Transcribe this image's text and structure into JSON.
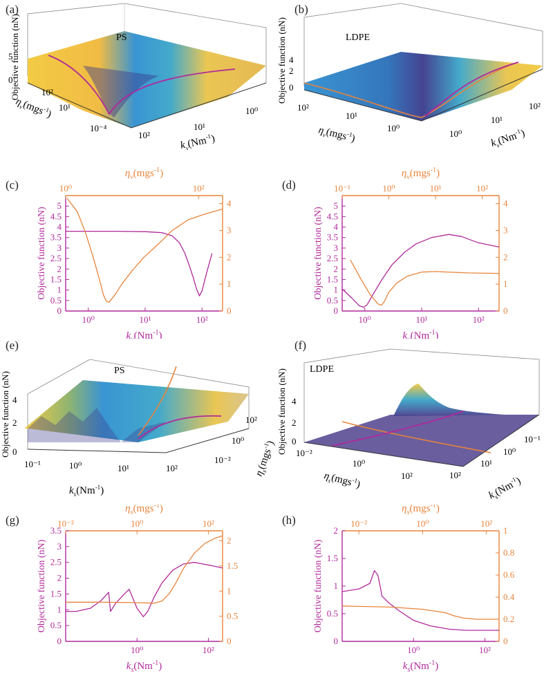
{
  "colors": {
    "magenta": "#b0299b",
    "orange": "#e8833a",
    "axis": "#333333",
    "surf_yellow": "#f2c83a",
    "surf_blue": "#2f8fd0",
    "surf_dark": "#3b3a8c",
    "surf_green": "#8ab06a"
  },
  "panels": {
    "a": {
      "label": "(a)",
      "material": "PS",
      "zlabel": "Objective function (nN)",
      "zticks": [
        "0",
        "5"
      ],
      "ylabel": "η",
      "ylabel_sub": "v",
      "ylabel_unit": "(mgs",
      "ylabel_exp": "-1",
      "ylabel_end": ")",
      "yticks": [
        "10²",
        "10¹",
        "10⁻⁴"
      ],
      "xlabel": "k",
      "xlabel_sub": "v",
      "xlabel_unit": "(Nm",
      "xlabel_exp": "-1",
      "xlabel_end": ")",
      "xticks": [
        "10⁰",
        "10¹",
        "10²"
      ]
    },
    "b": {
      "label": "(b)",
      "material": "LDPE",
      "zlabel": "Objective function (nN)",
      "zticks": [
        "0",
        "2",
        "4"
      ],
      "ylabel": "η",
      "ylabel_sub": "v",
      "ylabel_unit": "(mgs",
      "ylabel_exp": "-1",
      "ylabel_end": ")",
      "yticks": [
        "10²",
        "10¹",
        "10⁰"
      ],
      "xlabel": "k",
      "xlabel_sub": "v",
      "xlabel_unit": "(Nm",
      "xlabel_exp": "-1",
      "xlabel_end": ")",
      "xticks": [
        "10⁰",
        "10¹",
        "10²"
      ]
    },
    "e": {
      "label": "(e)",
      "material": "PS",
      "zlabel": "Objective function (nN)",
      "zticks": [
        "0",
        "2",
        "4"
      ],
      "ylabel": "η",
      "ylabel_sub": "s",
      "ylabel_unit": "(mgs",
      "ylabel_exp": "-1",
      "ylabel_end": ")",
      "yticks": [
        "10²",
        "10⁰",
        "10⁻²"
      ],
      "xlabel": "k",
      "xlabel_sub": "s",
      "xlabel_unit": "(Nm",
      "xlabel_exp": "-1",
      "xlabel_end": ")",
      "xticks": [
        "10⁻¹",
        "10⁰",
        "10¹",
        "10²"
      ]
    },
    "f": {
      "label": "(f)",
      "material": "LDPE",
      "zlabel": "Objective function (nN)",
      "zticks": [
        "0",
        "2",
        "4"
      ],
      "ylabel": "η",
      "ylabel_sub": "s",
      "ylabel_unit": "(mgs",
      "ylabel_exp": "-1",
      "ylabel_end": ")",
      "yticks": [
        "10⁻²",
        "10⁰",
        "10²"
      ],
      "xlabel": "k",
      "xlabel_sub": "s",
      "xlabel_unit": "(Nm",
      "xlabel_exp": "-1",
      "xlabel_end": ")",
      "xticks": [
        "10²",
        "10¹",
        "10⁰",
        "10⁻¹"
      ]
    }
  },
  "chart_data": [
    {
      "id": "c",
      "type": "line",
      "label": "(c)",
      "xlabel": "k",
      "xlabel_sub": "v",
      "xlabel_unit": "(Nm",
      "xlabel_exp": "-1",
      "xlabel_end": ")",
      "toplabel": "η",
      "toplabel_sub": "v",
      "toplabel_unit": "(mgs",
      "toplabel_exp": "-1",
      "toplabel_end": ")",
      "ylabel": "Objective function (nN)",
      "xlim": [
        0.4,
        230
      ],
      "toplim": [
        1,
        230
      ],
      "ylim": [
        0,
        5.5
      ],
      "y2lim": [
        0,
        4.3
      ],
      "xticks": [
        {
          "v": 1,
          "t": "10⁰"
        },
        {
          "v": 10,
          "t": "10¹"
        },
        {
          "v": 100,
          "t": "10²"
        }
      ],
      "topticks": [
        {
          "v": 1,
          "t": "10⁰"
        },
        {
          "v": 100,
          "t": "10²"
        }
      ],
      "yticks": [
        "0",
        "0.5",
        "1",
        "1.5",
        "2",
        "2.5",
        "3",
        "3.5",
        "4",
        "4.5",
        "5"
      ],
      "y2ticks": [
        "0",
        "1",
        "2",
        "3",
        "4"
      ],
      "series": [
        {
          "name": "Objective vs k_v",
          "axis": "left",
          "color": "magenta",
          "x": [
            0.4,
            1,
            3,
            10,
            20,
            30,
            40,
            50,
            60,
            70,
            80,
            90,
            100,
            120,
            150
          ],
          "y": [
            3.8,
            3.8,
            3.8,
            3.78,
            3.73,
            3.58,
            3.25,
            2.75,
            2.15,
            1.6,
            1.05,
            0.72,
            0.95,
            1.8,
            2.75
          ]
        },
        {
          "name": "Objective vs η_v",
          "axis": "right",
          "color": "orange",
          "x": [
            1.05,
            1.5,
            2,
            2.6,
            3.2,
            3.7,
            4.1,
            4.5,
            5.5,
            7,
            10,
            15,
            25,
            40,
            70,
            120,
            230
          ],
          "y": [
            4.2,
            3.7,
            2.9,
            2.0,
            1.2,
            0.6,
            0.36,
            0.33,
            0.6,
            1.0,
            1.5,
            2.0,
            2.5,
            3.0,
            3.4,
            3.6,
            3.8
          ]
        }
      ]
    },
    {
      "id": "d",
      "type": "line",
      "label": "(d)",
      "xlabel": "k",
      "xlabel_sub": "v",
      "xlabel_unit": "(Nm",
      "xlabel_exp": "-1",
      "xlabel_end": ")",
      "toplabel": "η",
      "toplabel_sub": "v",
      "toplabel_unit": "(mgs",
      "toplabel_exp": "-1",
      "toplabel_end": ")",
      "ylabel": "Objective function (nN)",
      "xlim": [
        0.4,
        230
      ],
      "toplim": [
        0.1,
        230
      ],
      "ylim": [
        0,
        5.5
      ],
      "y2lim": [
        0,
        4.3
      ],
      "xticks": [
        {
          "v": 1,
          "t": "10⁰"
        },
        {
          "v": 10,
          "t": "10¹"
        },
        {
          "v": 100,
          "t": "10²"
        }
      ],
      "topticks": [
        {
          "v": 0.1,
          "t": "10⁻¹"
        },
        {
          "v": 1,
          "t": "10⁰"
        },
        {
          "v": 10,
          "t": "10¹"
        },
        {
          "v": 100,
          "t": "10²"
        }
      ],
      "yticks": [
        "0",
        "0.5",
        "1",
        "1.5",
        "2",
        "2.5",
        "3",
        "3.5",
        "4",
        "4.5",
        "5"
      ],
      "y2ticks": [
        "0",
        "1",
        "2",
        "3",
        "4"
      ],
      "series": [
        {
          "name": "Objective vs k_v",
          "axis": "left",
          "color": "magenta",
          "x": [
            0.4,
            0.6,
            0.8,
            0.95,
            1.1,
            1.4,
            2,
            3,
            5,
            8,
            15,
            30,
            50,
            100,
            230
          ],
          "y": [
            1.05,
            0.6,
            0.25,
            0.18,
            0.3,
            0.8,
            1.5,
            2.2,
            2.8,
            3.2,
            3.5,
            3.65,
            3.55,
            3.25,
            3.05
          ]
        },
        {
          "name": "Objective vs η_v",
          "axis": "right",
          "color": "orange",
          "x": [
            0.15,
            0.25,
            0.4,
            0.6,
            0.7,
            0.8,
            1,
            1.5,
            2.5,
            5,
            10,
            50,
            230
          ],
          "y": [
            1.9,
            1.2,
            0.6,
            0.25,
            0.22,
            0.35,
            0.7,
            1.05,
            1.3,
            1.45,
            1.47,
            1.42,
            1.4
          ]
        }
      ]
    },
    {
      "id": "g",
      "type": "line",
      "label": "(g)",
      "xlabel": "k",
      "xlabel_sub": "s",
      "xlabel_unit": "(Nm",
      "xlabel_exp": "-1",
      "xlabel_end": ")",
      "toplabel": "η",
      "toplabel_sub": "s",
      "toplabel_unit": "(mgs",
      "toplabel_exp": "-1",
      "toplabel_end": ")",
      "ylabel": "Objective function (nN)",
      "xlim": [
        0.01,
        250
      ],
      "toplim": [
        0.01,
        250
      ],
      "ylim": [
        0,
        3.5
      ],
      "y2lim": [
        0,
        2.2
      ],
      "xticks": [
        {
          "v": 1,
          "t": "10⁰"
        },
        {
          "v": 100,
          "t": "10²"
        }
      ],
      "topticks": [
        {
          "v": 0.01,
          "t": "10⁻²"
        },
        {
          "v": 1,
          "t": "10⁰"
        },
        {
          "v": 100,
          "t": "10²"
        }
      ],
      "yticks": [
        "0",
        "0.5",
        "1",
        "1.5",
        "2",
        "2.5",
        "3",
        "3.5"
      ],
      "y2ticks": [
        "0",
        "0.5",
        "1",
        "1.5",
        "2"
      ],
      "series": [
        {
          "name": "Objective vs k_s",
          "axis": "left",
          "color": "magenta",
          "x": [
            0.01,
            0.02,
            0.05,
            0.1,
            0.16,
            0.18,
            0.25,
            0.4,
            0.6,
            1,
            1.5,
            2,
            3,
            5,
            10,
            20,
            40,
            70,
            120,
            250
          ],
          "y": [
            0.95,
            0.95,
            1.05,
            1.3,
            1.55,
            0.95,
            1.2,
            1.45,
            1.65,
            1.05,
            0.78,
            0.95,
            1.4,
            1.85,
            2.25,
            2.45,
            2.5,
            2.45,
            2.4,
            2.32
          ]
        },
        {
          "name": "Objective vs η_s",
          "axis": "right",
          "color": "orange",
          "x": [
            0.01,
            0.1,
            1,
            3,
            5,
            8,
            12,
            20,
            40,
            80,
            150,
            250
          ],
          "y": [
            0.78,
            0.78,
            0.77,
            0.76,
            0.8,
            0.95,
            1.15,
            1.45,
            1.75,
            1.95,
            2.05,
            2.1
          ]
        }
      ]
    },
    {
      "id": "h",
      "type": "line",
      "label": "(h)",
      "xlabel": "k",
      "xlabel_sub": "s",
      "xlabel_unit": "(Nm",
      "xlabel_exp": "-1",
      "xlabel_end": ")",
      "toplabel": "η",
      "toplabel_sub": "s",
      "toplabel_unit": "(mgs",
      "toplabel_exp": "-1",
      "toplabel_end": ")",
      "ylabel": "Objective function (nN)",
      "xlim": [
        0.01,
        250
      ],
      "toplim": [
        0.003,
        250
      ],
      "ylim": [
        0,
        2
      ],
      "y2lim": [
        0,
        1
      ],
      "xticks": [
        {
          "v": 1,
          "t": "10⁰"
        },
        {
          "v": 100,
          "t": "10²"
        }
      ],
      "topticks": [
        {
          "v": 0.01,
          "t": "10⁻²"
        },
        {
          "v": 1,
          "t": "10⁰"
        },
        {
          "v": 100,
          "t": "10²"
        }
      ],
      "yticks": [
        "0",
        "0.5",
        "1",
        "1.5",
        "2"
      ],
      "y2ticks": [
        "0",
        "0.2",
        "0.4",
        "0.6",
        "0.8",
        "1"
      ],
      "series": [
        {
          "name": "Objective vs k_s",
          "axis": "left",
          "color": "magenta",
          "x": [
            0.01,
            0.03,
            0.06,
            0.08,
            0.1,
            0.12,
            0.13,
            0.2,
            0.4,
            1,
            3,
            10,
            30,
            100,
            250
          ],
          "y": [
            0.9,
            0.95,
            1.05,
            1.28,
            1.2,
            0.95,
            0.82,
            0.7,
            0.55,
            0.38,
            0.28,
            0.22,
            0.2,
            0.2,
            0.2
          ]
        },
        {
          "name": "Objective vs η_s",
          "axis": "right",
          "color": "orange",
          "x": [
            0.003,
            0.1,
            1,
            5,
            10,
            20,
            50,
            100,
            250
          ],
          "y": [
            0.32,
            0.31,
            0.29,
            0.26,
            0.23,
            0.21,
            0.2,
            0.2,
            0.2
          ]
        }
      ]
    }
  ]
}
